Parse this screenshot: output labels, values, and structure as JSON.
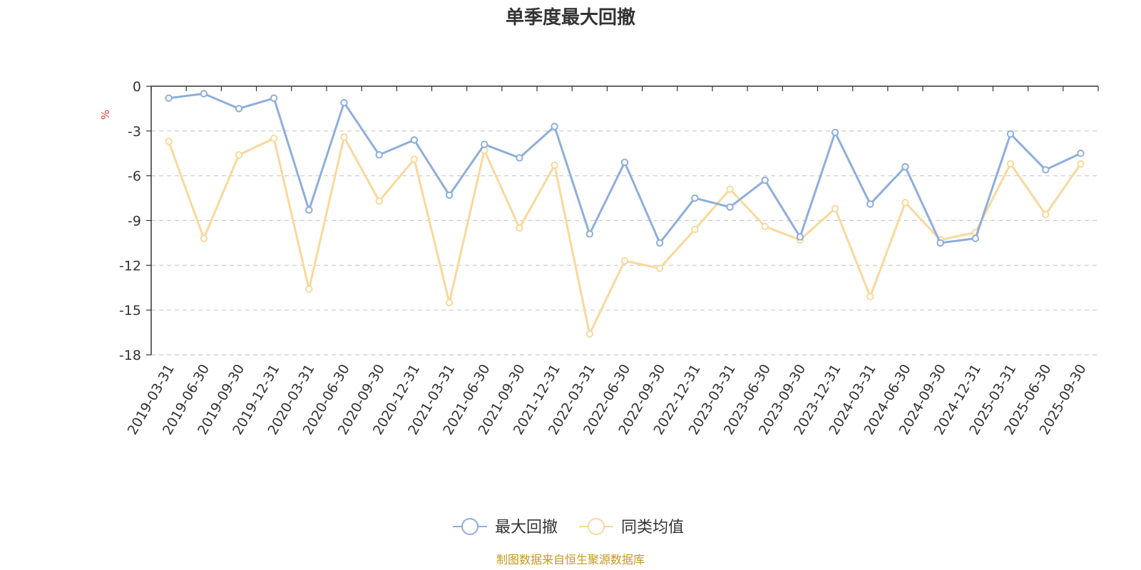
{
  "chart_data": {
    "type": "line",
    "title": "单季度最大回撤",
    "ylabel": "%",
    "ylim": [
      -18,
      0
    ],
    "yticks": [
      0,
      -3,
      -6,
      -9,
      -12,
      -15,
      -18
    ],
    "grid": true,
    "legend_position": "bottom",
    "categories": [
      "2019-03-31",
      "2019-06-30",
      "2019-09-30",
      "2019-12-31",
      "2020-03-31",
      "2020-06-30",
      "2020-09-30",
      "2020-12-31",
      "2021-03-31",
      "2021-06-30",
      "2021-09-30",
      "2021-12-31",
      "2022-03-31",
      "2022-06-30",
      "2022-09-30",
      "2022-12-31",
      "2023-03-31",
      "2023-06-30",
      "2023-09-30",
      "2023-12-31",
      "2024-03-31",
      "2024-06-30",
      "2024-09-30",
      "2024-12-31",
      "2025-03-31",
      "2025-06-30",
      "2025-09-30"
    ],
    "series": [
      {
        "name": "最大回撤",
        "color": "#8eaedb",
        "values": [
          -0.8,
          -0.5,
          -1.5,
          -0.8,
          -8.3,
          -1.1,
          -4.6,
          -3.6,
          -7.3,
          -3.9,
          -4.8,
          -2.7,
          -9.9,
          -5.1,
          -10.5,
          -7.5,
          -8.1,
          -6.3,
          -10.1,
          -3.1,
          -7.9,
          -5.4,
          -10.5,
          -10.2,
          -3.2,
          -5.6,
          -4.5
        ]
      },
      {
        "name": "同类均值",
        "color": "#fad89b",
        "values": [
          -3.7,
          -10.2,
          -4.6,
          -3.5,
          -13.6,
          -3.4,
          -7.7,
          -4.9,
          -14.5,
          -4.3,
          -9.5,
          -5.3,
          -16.6,
          -11.7,
          -12.2,
          -9.6,
          -6.9,
          -9.4,
          -10.3,
          -8.2,
          -14.1,
          -7.8,
          -10.3,
          -9.8,
          -5.2,
          -8.6,
          -5.2
        ]
      }
    ]
  },
  "source_text": "制图数据来自恒生聚源数据库"
}
